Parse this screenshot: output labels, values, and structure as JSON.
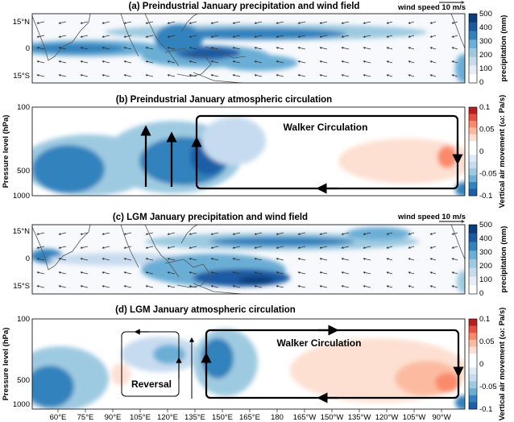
{
  "chart_data": [
    {
      "type": "heatmap",
      "title": "(a) Preindustrial January precipitation and wind field",
      "ylabel": "",
      "y_ticks": [
        "15°N",
        "0",
        "15°S"
      ],
      "colorbar": {
        "label": "precipitation (mm)",
        "ticks": [
          "500",
          "400",
          "300",
          "200",
          "100",
          "0"
        ],
        "range": [
          0,
          500
        ]
      },
      "wind_key": "wind speed 10 m/s",
      "bands": [
        {
          "x": [
            52,
            95
          ],
          "y": -1,
          "level": 3
        },
        {
          "x": [
            95,
            130
          ],
          "y": 0,
          "level": 4
        },
        {
          "x": [
            130,
            175
          ],
          "y": -7,
          "level": 4
        },
        {
          "x": [
            140,
            260
          ],
          "y": 8,
          "level": 3
        },
        {
          "x": [
            110,
            160
          ],
          "y": -3,
          "level": 5
        },
        {
          "x": [
            265,
            280
          ],
          "y": -10,
          "level": 2
        }
      ]
    },
    {
      "type": "heatmap",
      "title": "(b) Preindustrial January atmospheric circulation",
      "ylabel": "Pressure level (hPa)",
      "y_ticks": [
        "100",
        "500",
        "1000"
      ],
      "colorbar": {
        "label": "Vertical air movement (ω: Pa/s)",
        "ticks": [
          "0.1",
          "0.05",
          "0",
          "-0.05",
          "-0.1"
        ],
        "range": [
          -0.1,
          0.1
        ]
      },
      "annotation": "Walker Circulation",
      "cells": [
        {
          "x": [
            50,
            90
          ],
          "y": [
            250,
            950
          ],
          "value": -0.07
        },
        {
          "x": [
            100,
            140
          ],
          "y": [
            250,
            950
          ],
          "value": -0.08
        },
        {
          "x": [
            200,
            275
          ],
          "y": [
            350,
            950
          ],
          "value": 0.03
        }
      ]
    },
    {
      "type": "heatmap",
      "title": "(c) LGM January precipitation and wind field",
      "ylabel": "",
      "y_ticks": [
        "15°N",
        "0",
        "15°S"
      ],
      "colorbar": {
        "label": "precipitation (mm)",
        "ticks": [
          "500",
          "400",
          "300",
          "200",
          "100",
          "0"
        ],
        "range": [
          0,
          500
        ]
      },
      "wind_key": "wind speed 10 m/s",
      "bands": [
        {
          "x": [
            52,
            70
          ],
          "y": 0,
          "level": 3
        },
        {
          "x": [
            105,
            140
          ],
          "y": -3,
          "level": 3
        },
        {
          "x": [
            130,
            200
          ],
          "y": -10,
          "level": 5
        },
        {
          "x": [
            140,
            240
          ],
          "y": 8,
          "level": 3
        }
      ]
    },
    {
      "type": "heatmap",
      "title": "(d) LGM January atmospheric circulation",
      "ylabel": "Pressure level (hPa)",
      "y_ticks": [
        "100",
        "500",
        "1000"
      ],
      "x_ticks": [
        "60°E",
        "75°E",
        "90°E",
        "105°E",
        "120°E",
        "135°E",
        "150°E",
        "165°E",
        "180",
        "165°W",
        "150°W",
        "135°W",
        "120°W",
        "105°W",
        "90°W"
      ],
      "colorbar": {
        "label": "Vertical air movement (ω: Pa/s)",
        "ticks": [
          "0.1",
          "0.05",
          "0",
          "-0.05",
          "-0.1"
        ],
        "range": [
          -0.1,
          0.1
        ]
      },
      "annotation": "Walker Circulation",
      "annotation2": "Reversal",
      "cells": [
        {
          "x": [
            50,
            70
          ],
          "y": [
            450,
            950
          ],
          "value": -0.07
        },
        {
          "x": [
            140,
            160
          ],
          "y": [
            300,
            900
          ],
          "value": -0.08
        },
        {
          "x": [
            200,
            275
          ],
          "y": [
            300,
            950
          ],
          "value": 0.04
        }
      ]
    }
  ],
  "colors": {
    "precip": [
      "#ffffff",
      "#e6edf7",
      "#c7dbef",
      "#9ecae1",
      "#6baed6",
      "#3182bd",
      "#1b5aa3",
      "#0b3d7a"
    ],
    "omega_neg": [
      "#deebf7",
      "#c6dbef",
      "#9ecae1",
      "#6baed6",
      "#3182bd",
      "#1d5fa6"
    ],
    "omega_pos": [
      "#fde0d2",
      "#fcbba1",
      "#fb8a6a",
      "#e5503f",
      "#b91c1c"
    ]
  }
}
